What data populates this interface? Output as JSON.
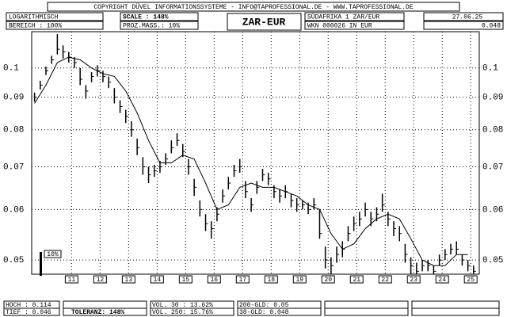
{
  "header": {
    "copyright": "COPYRIGHT DÜVEL INFORMATIONSSYSTEME - INFO@TAPROFESSIONAL.DE - WWW.TAPROFESSIONAL.DE",
    "mode": "LOGARITHMISCH",
    "range": "BEREICH : 100%",
    "scale": "SCALE : 148%",
    "percent_scale": "PROZ.MASS.: 10%",
    "symbol": "ZAR-EUR",
    "name": "SÜDAFRIKA 1 ZAR/EUR",
    "date": "27.06.25",
    "wkn": "WKN 000026 IN EUR",
    "last": "0.048"
  },
  "footer": {
    "high": "HOCH : 0.114",
    "low": "TIEF : 0.046",
    "tolerance": "TOLERANZ: 148%",
    "vol30": "VOL. 30 : 13.62%",
    "vol250": "VOL. 250: 15.76%",
    "gd200": "200-GLD: 0.05",
    "gd38": "38-GLD: 0.048"
  },
  "chart_data": {
    "type": "hlc",
    "color": "#000000",
    "log_scale": true,
    "grid": true,
    "scale_note": "10%",
    "xlim": [
      9.6,
      25.3
    ],
    "xticks": [
      11,
      12,
      13,
      14,
      15,
      16,
      17,
      18,
      19,
      20,
      21,
      22,
      23,
      24,
      25
    ],
    "ylim": [
      0.0475,
      0.114
    ],
    "yticks": [
      0.1,
      0.09,
      0.08,
      0.07,
      0.06,
      0.05
    ],
    "x": [
      9.7,
      9.9,
      10.1,
      10.3,
      10.5,
      10.7,
      10.9,
      11.1,
      11.3,
      11.5,
      11.7,
      11.9,
      12.1,
      12.3,
      12.5,
      12.7,
      12.9,
      13.1,
      13.3,
      13.5,
      13.7,
      13.9,
      14.1,
      14.3,
      14.5,
      14.7,
      14.9,
      15.1,
      15.3,
      15.5,
      15.7,
      15.9,
      16.1,
      16.3,
      16.5,
      16.7,
      16.9,
      17.1,
      17.3,
      17.5,
      17.7,
      17.9,
      18.1,
      18.3,
      18.5,
      18.7,
      18.9,
      19.1,
      19.3,
      19.5,
      19.7,
      19.9,
      20.1,
      20.3,
      20.5,
      20.7,
      20.9,
      21.1,
      21.3,
      21.5,
      21.7,
      21.9,
      22.1,
      22.3,
      22.5,
      22.7,
      22.9,
      23.1,
      23.3,
      23.5,
      23.7,
      23.9,
      24.1,
      24.3,
      24.5,
      24.7,
      24.9,
      25.1
    ],
    "high": [
      0.0915,
      0.0955,
      0.1005,
      0.1045,
      0.113,
      0.1085,
      0.106,
      0.104,
      0.1,
      0.094,
      0.0985,
      0.101,
      0.099,
      0.097,
      0.093,
      0.089,
      0.086,
      0.0825,
      0.0775,
      0.0725,
      0.07,
      0.0705,
      0.0715,
      0.0735,
      0.077,
      0.079,
      0.076,
      0.072,
      0.067,
      0.062,
      0.059,
      0.0575,
      0.0605,
      0.0645,
      0.0675,
      0.0705,
      0.072,
      0.0665,
      0.0625,
      0.0665,
      0.0695,
      0.0685,
      0.0655,
      0.0645,
      0.0655,
      0.0635,
      0.0625,
      0.062,
      0.0615,
      0.0625,
      0.06,
      0.0525,
      0.0505,
      0.0525,
      0.0535,
      0.0565,
      0.0585,
      0.0595,
      0.0615,
      0.0595,
      0.0605,
      0.0635,
      0.0595,
      0.0575,
      0.0565,
      0.053,
      0.0505,
      0.0495,
      0.05,
      0.05,
      0.049,
      0.051,
      0.052,
      0.053,
      0.0535,
      0.051,
      0.05,
      0.049
    ],
    "low": [
      0.0885,
      0.0925,
      0.0975,
      0.1015,
      0.105,
      0.1035,
      0.102,
      0.1,
      0.094,
      0.0895,
      0.095,
      0.097,
      0.095,
      0.093,
      0.088,
      0.085,
      0.082,
      0.078,
      0.073,
      0.068,
      0.066,
      0.0675,
      0.0685,
      0.0705,
      0.0735,
      0.0755,
      0.0725,
      0.068,
      0.063,
      0.0585,
      0.0555,
      0.054,
      0.0575,
      0.0615,
      0.0645,
      0.0675,
      0.0685,
      0.0625,
      0.0595,
      0.0635,
      0.0665,
      0.0655,
      0.0625,
      0.0615,
      0.0625,
      0.0605,
      0.0595,
      0.06,
      0.059,
      0.06,
      0.054,
      0.0485,
      0.0475,
      0.0495,
      0.0505,
      0.0535,
      0.0555,
      0.0565,
      0.0585,
      0.0565,
      0.0575,
      0.0595,
      0.0565,
      0.0545,
      0.0535,
      0.0495,
      0.0475,
      0.0475,
      0.048,
      0.048,
      0.0475,
      0.049,
      0.05,
      0.051,
      0.051,
      0.049,
      0.048,
      0.0475
    ],
    "close": [
      0.09,
      0.094,
      0.099,
      0.103,
      0.107,
      0.106,
      0.104,
      0.102,
      0.096,
      0.092,
      0.097,
      0.099,
      0.097,
      0.095,
      0.09,
      0.087,
      0.084,
      0.08,
      0.075,
      0.07,
      0.068,
      0.069,
      0.07,
      0.072,
      0.075,
      0.077,
      0.074,
      0.07,
      0.065,
      0.06,
      0.057,
      0.056,
      0.059,
      0.063,
      0.066,
      0.069,
      0.07,
      0.064,
      0.061,
      0.065,
      0.068,
      0.067,
      0.064,
      0.063,
      0.064,
      0.062,
      0.061,
      0.061,
      0.06,
      0.061,
      0.055,
      0.05,
      0.049,
      0.051,
      0.052,
      0.055,
      0.057,
      0.058,
      0.06,
      0.058,
      0.059,
      0.061,
      0.058,
      0.056,
      0.055,
      0.051,
      0.049,
      0.048,
      0.049,
      0.049,
      0.048,
      0.05,
      0.051,
      0.052,
      0.052,
      0.05,
      0.049,
      0.048
    ],
    "ma": {
      "x": [
        9.7,
        10.1,
        10.5,
        10.9,
        11.3,
        11.7,
        12.1,
        12.5,
        12.9,
        13.3,
        13.7,
        14.1,
        14.5,
        14.9,
        15.3,
        15.7,
        16.1,
        16.5,
        16.9,
        17.3,
        17.7,
        18.1,
        18.5,
        18.9,
        19.3,
        19.7,
        20.1,
        20.5,
        20.9,
        21.3,
        21.7,
        22.1,
        22.5,
        22.9,
        23.3,
        23.7,
        24.1,
        24.5,
        24.9
      ],
      "values": [
        0.088,
        0.094,
        0.102,
        0.104,
        0.103,
        0.1,
        0.098,
        0.097,
        0.092,
        0.085,
        0.077,
        0.071,
        0.071,
        0.073,
        0.072,
        0.066,
        0.06,
        0.061,
        0.065,
        0.066,
        0.065,
        0.065,
        0.064,
        0.063,
        0.061,
        0.06,
        0.055,
        0.052,
        0.053,
        0.056,
        0.058,
        0.059,
        0.058,
        0.054,
        0.05,
        0.049,
        0.049,
        0.051,
        0.051
      ]
    }
  }
}
